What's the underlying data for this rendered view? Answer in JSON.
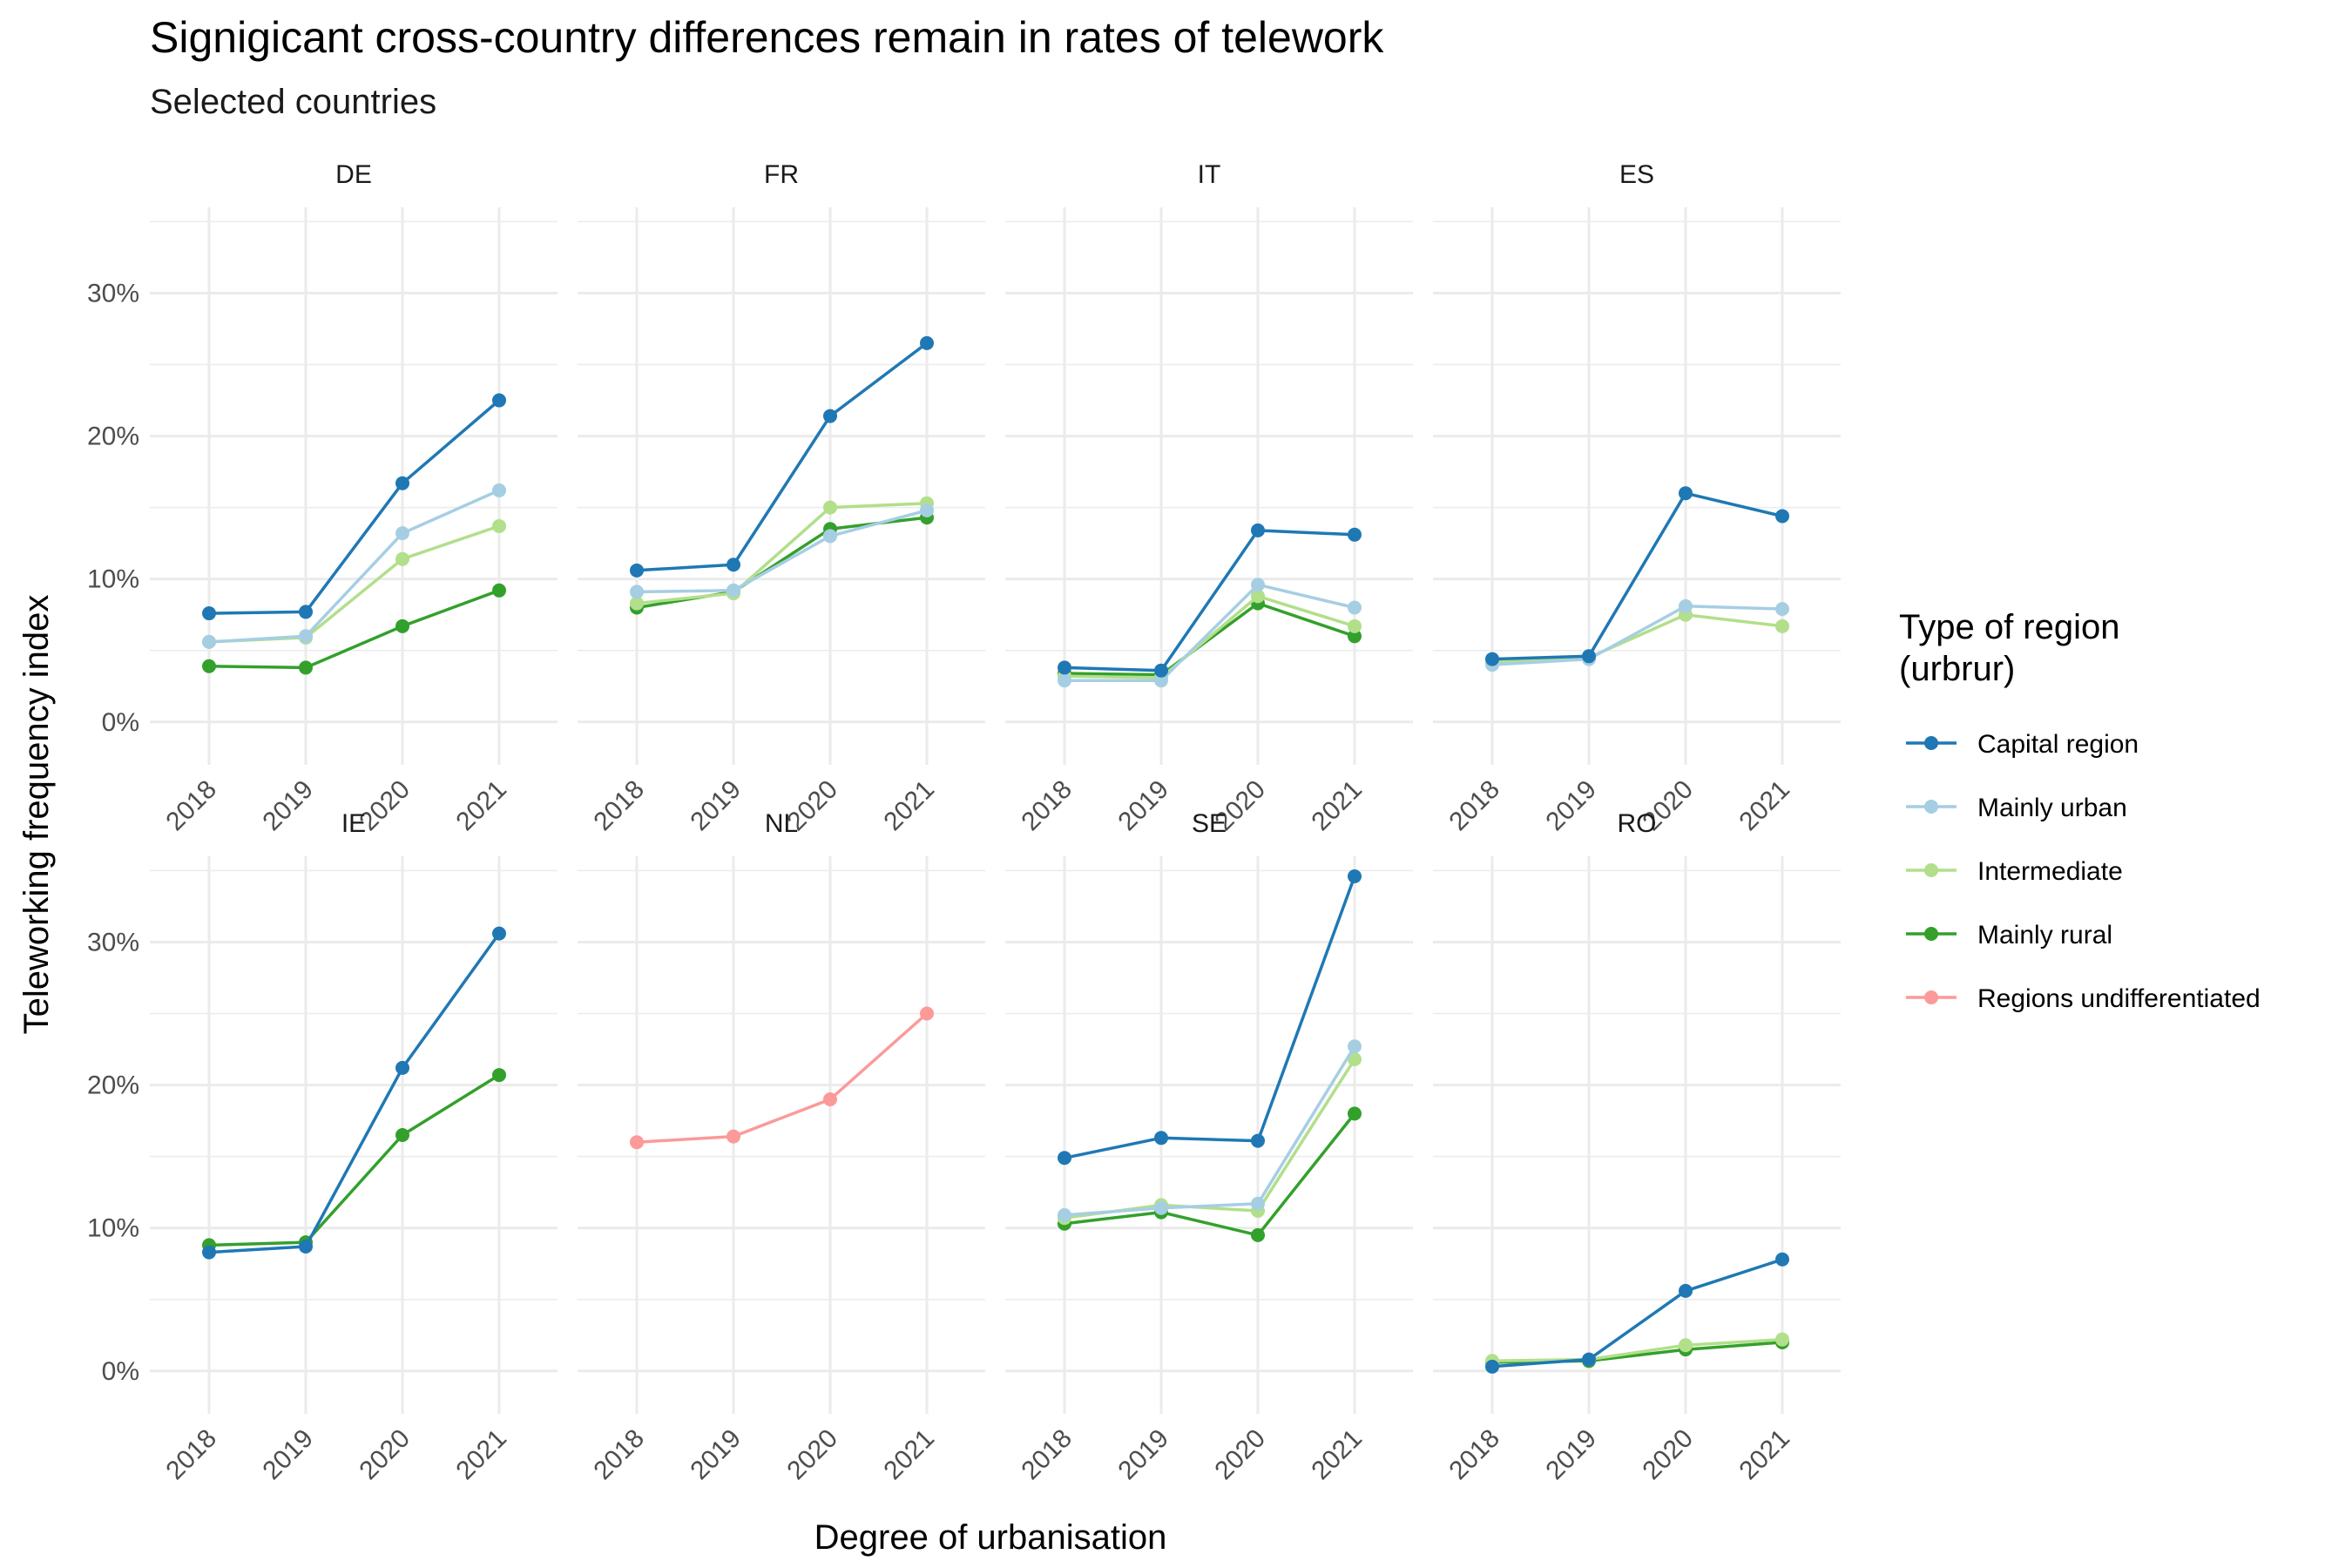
{
  "chart_data": {
    "type": "line",
    "title": "Signigicant cross-country differences remain in rates of telework",
    "subtitle": "Selected countries",
    "xlabel": "Degree of urbanisation",
    "ylabel": "Teleworking frequency index",
    "x": [
      "2018",
      "2019",
      "2020",
      "2021"
    ],
    "ylim": [
      -3,
      36
    ],
    "yticks": [
      0,
      10,
      20,
      30
    ],
    "ytick_labels": [
      "0%",
      "10%",
      "20%",
      "30%"
    ],
    "grid": true,
    "legend": {
      "title_line1": "Type of region",
      "title_line2": "(urbrur)",
      "position": "right"
    },
    "series_styles": [
      {
        "name": "Capital region",
        "color": "#1f78b4"
      },
      {
        "name": "Mainly urban",
        "color": "#a6cee3"
      },
      {
        "name": "Intermediate",
        "color": "#b2df8a"
      },
      {
        "name": "Mainly rural",
        "color": "#33a02c"
      },
      {
        "name": "Regions undifferentiated",
        "color": "#fb9a99"
      }
    ],
    "panels": [
      {
        "name": "DE",
        "series": [
          {
            "name": "Mainly rural",
            "values": [
              3.9,
              3.8,
              6.7,
              9.2
            ]
          },
          {
            "name": "Intermediate",
            "values": [
              5.6,
              5.9,
              11.4,
              13.7
            ]
          },
          {
            "name": "Mainly urban",
            "values": [
              5.6,
              6.0,
              13.2,
              16.2
            ]
          },
          {
            "name": "Capital region",
            "values": [
              7.6,
              7.7,
              16.7,
              22.5
            ]
          }
        ]
      },
      {
        "name": "FR",
        "series": [
          {
            "name": "Mainly rural",
            "values": [
              8.0,
              9.1,
              13.5,
              14.3
            ]
          },
          {
            "name": "Intermediate",
            "values": [
              8.3,
              9.0,
              15.0,
              15.3
            ]
          },
          {
            "name": "Mainly urban",
            "values": [
              9.1,
              9.2,
              13.0,
              14.8
            ]
          },
          {
            "name": "Capital region",
            "values": [
              10.6,
              11.0,
              21.4,
              26.5
            ]
          }
        ]
      },
      {
        "name": "IT",
        "series": [
          {
            "name": "Mainly rural",
            "values": [
              3.4,
              3.3,
              8.3,
              6.0
            ]
          },
          {
            "name": "Intermediate",
            "values": [
              3.2,
              3.1,
              8.8,
              6.7
            ]
          },
          {
            "name": "Mainly urban",
            "values": [
              2.9,
              2.9,
              9.6,
              8.0
            ]
          },
          {
            "name": "Capital region",
            "values": [
              3.8,
              3.6,
              13.4,
              13.1
            ]
          }
        ]
      },
      {
        "name": "ES",
        "series": [
          {
            "name": "Intermediate",
            "values": [
              4.2,
              4.5,
              7.5,
              6.7
            ]
          },
          {
            "name": "Mainly urban",
            "values": [
              4.0,
              4.4,
              8.1,
              7.9
            ]
          },
          {
            "name": "Capital region",
            "values": [
              4.4,
              4.6,
              16.0,
              14.4
            ]
          }
        ]
      },
      {
        "name": "IE",
        "series": [
          {
            "name": "Mainly rural",
            "values": [
              8.8,
              9.0,
              16.5,
              20.7
            ]
          },
          {
            "name": "Capital region",
            "values": [
              8.3,
              8.7,
              21.2,
              30.6
            ]
          }
        ]
      },
      {
        "name": "NL",
        "series": [
          {
            "name": "Regions undifferentiated",
            "values": [
              16.0,
              16.4,
              19.0,
              25.0
            ]
          }
        ]
      },
      {
        "name": "SE",
        "series": [
          {
            "name": "Mainly rural",
            "values": [
              10.3,
              11.1,
              9.5,
              18.0
            ]
          },
          {
            "name": "Intermediate",
            "values": [
              10.7,
              11.6,
              11.2,
              21.8
            ]
          },
          {
            "name": "Mainly urban",
            "values": [
              10.9,
              11.4,
              11.7,
              22.7
            ]
          },
          {
            "name": "Capital region",
            "values": [
              14.9,
              16.3,
              16.1,
              34.6
            ]
          }
        ]
      },
      {
        "name": "RO",
        "series": [
          {
            "name": "Mainly rural",
            "values": [
              0.6,
              0.7,
              1.5,
              2.0
            ]
          },
          {
            "name": "Intermediate",
            "values": [
              0.7,
              0.8,
              1.8,
              2.2
            ]
          },
          {
            "name": "Capital region",
            "values": [
              0.3,
              0.8,
              5.6,
              7.8
            ]
          }
        ]
      }
    ]
  }
}
